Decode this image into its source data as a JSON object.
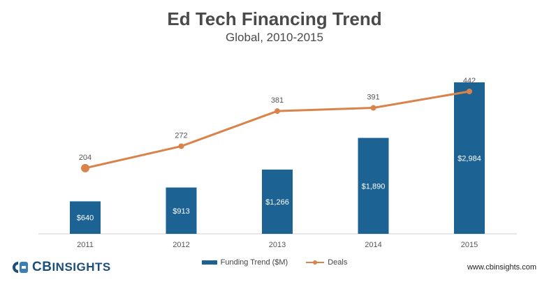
{
  "header": {
    "title": "Ed Tech Financing Trend",
    "subtitle": "Global, 2010-2015"
  },
  "chart_data": {
    "type": "bar",
    "categories": [
      "2011",
      "2012",
      "2013",
      "2014",
      "2015"
    ],
    "series": [
      {
        "name": "Funding Trend ($M)",
        "type": "bar",
        "values": [
          640,
          913,
          1266,
          1890,
          2984
        ],
        "labels": [
          "$640",
          "$913",
          "$1,266",
          "$1,890",
          "$2,984"
        ],
        "color": "#1c6394"
      },
      {
        "name": "Deals",
        "type": "line",
        "values": [
          204,
          272,
          381,
          391,
          442
        ],
        "labels": [
          "204",
          "272",
          "381",
          "391",
          "442"
        ],
        "color": "#d9834a"
      }
    ],
    "xlabel": "",
    "ylabel": "",
    "ylim_funding": [
      0,
      3300
    ],
    "ylim_deals": [
      0,
      520
    ],
    "grid": false,
    "legend_position": "bottom-center"
  },
  "branding": {
    "logo_cb": "CB",
    "logo_insights": "INSIGHTS",
    "logo_color": "#1b4f7a",
    "website": "www.cbinsights.com"
  }
}
